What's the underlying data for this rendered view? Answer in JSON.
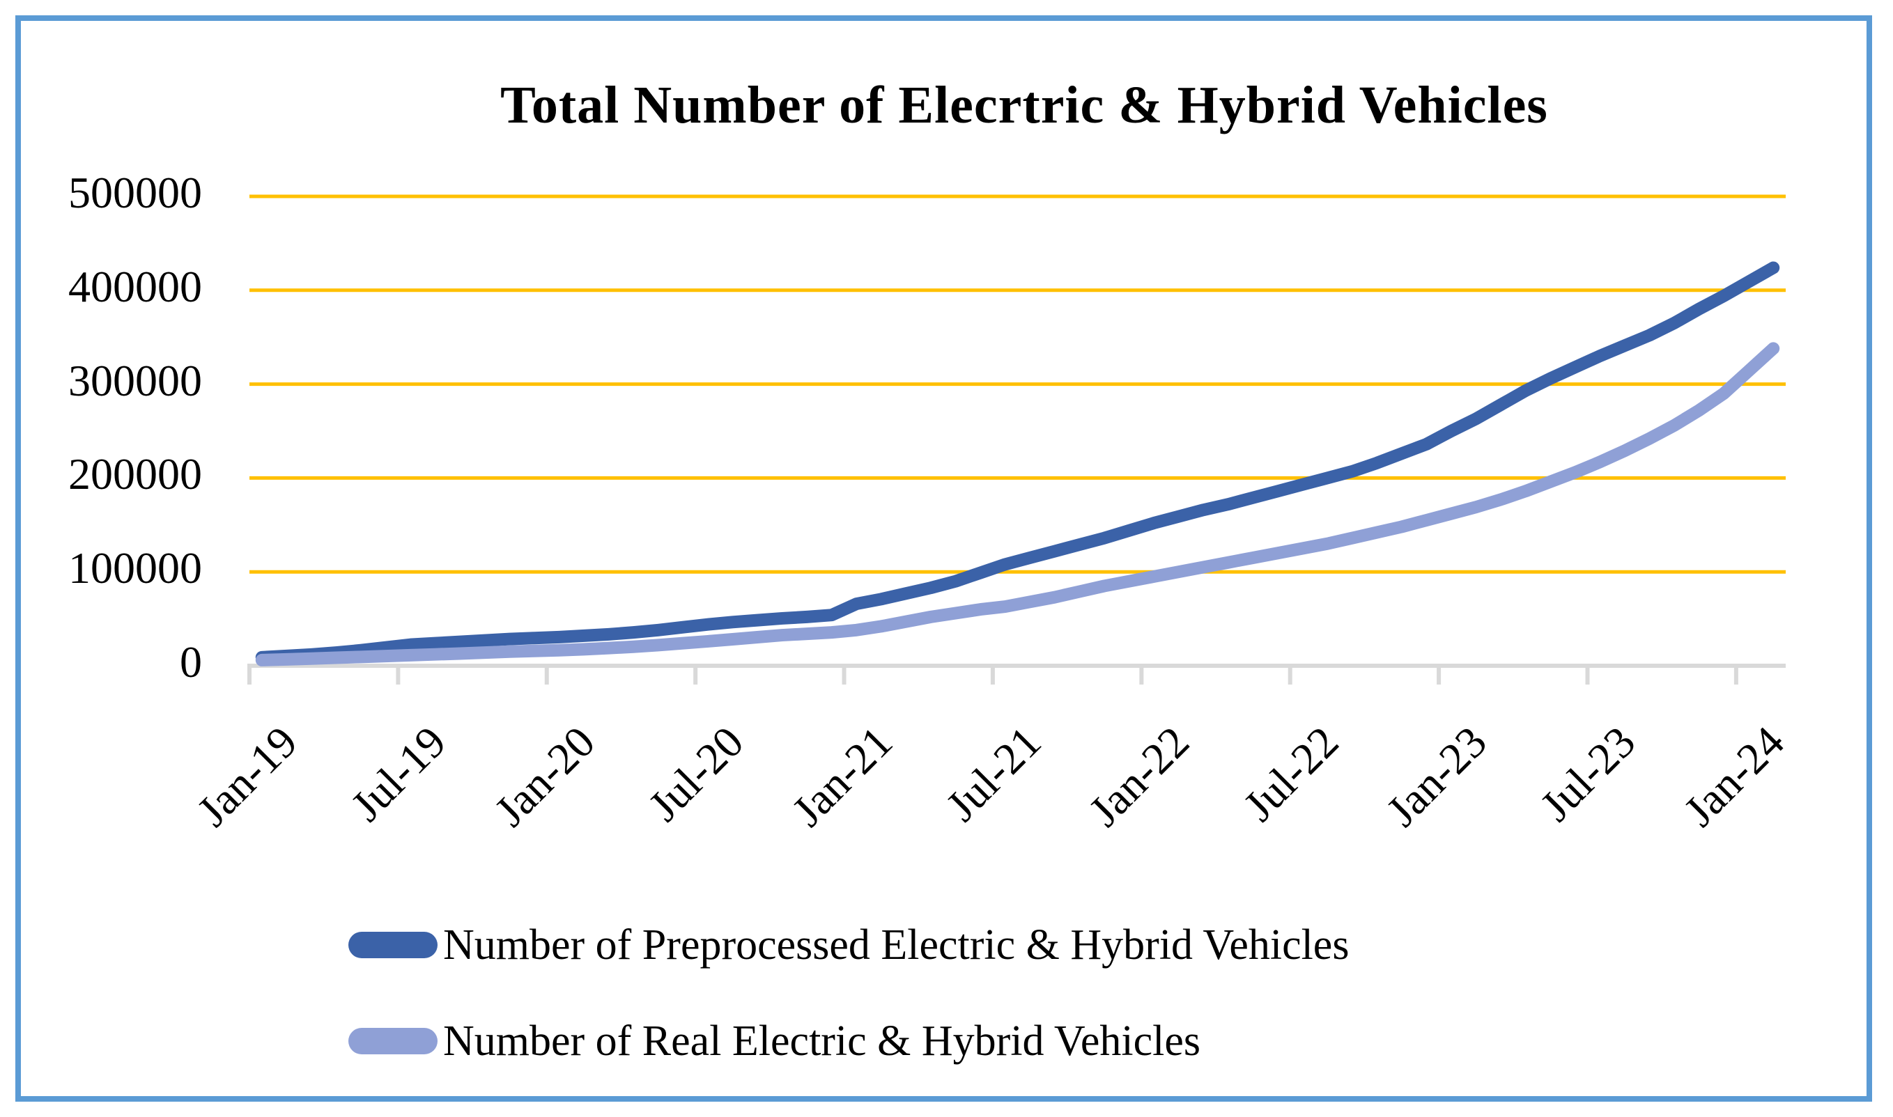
{
  "title": "Total Number of Elecrtric & Hybrid Vehicles",
  "colors": {
    "preprocessed": "#3B62A8",
    "real": "#8FA0D6",
    "gridline": "#FFC000",
    "axis_line": "#D9D9D9",
    "frame_border": "#5B9BD5"
  },
  "y_axis": {
    "labels": [
      {
        "text": "0",
        "value": 0
      },
      {
        "text": "100000",
        "value": 100000
      },
      {
        "text": "200000",
        "value": 200000
      },
      {
        "text": "300000",
        "value": 300000
      },
      {
        "text": "400000",
        "value": 400000
      },
      {
        "text": "500000",
        "value": 500000
      }
    ]
  },
  "x_axis": {
    "labels": [
      {
        "text": "Jan-19",
        "month_index": 0
      },
      {
        "text": "Jul-19",
        "month_index": 6
      },
      {
        "text": "Jan-20",
        "month_index": 12
      },
      {
        "text": "Jul-20",
        "month_index": 18
      },
      {
        "text": "Jan-21",
        "month_index": 24
      },
      {
        "text": "Jul-21",
        "month_index": 30
      },
      {
        "text": "Jan-22",
        "month_index": 36
      },
      {
        "text": "Jul-22",
        "month_index": 42
      },
      {
        "text": "Jan-23",
        "month_index": 48
      },
      {
        "text": "Jul-23",
        "month_index": 54
      },
      {
        "text": "Jan-24",
        "month_index": 60
      }
    ]
  },
  "legend": [
    {
      "label": "Number of Preprocessed Electric & Hybrid Vehicles",
      "color_key": "preprocessed"
    },
    {
      "label": "Number of Real Electric & Hybrid Vehicles",
      "color_key": "real"
    }
  ],
  "chart_data": {
    "type": "line",
    "title": "Total Number of Elecrtric & Hybrid Vehicles",
    "xlabel": "",
    "ylabel": "",
    "ylim": [
      0,
      500000
    ],
    "y_gridline_step": 100000,
    "grid": "horizontal",
    "legend_position": "bottom",
    "x": [
      "Jan-19",
      "Feb-19",
      "Mar-19",
      "Apr-19",
      "May-19",
      "Jun-19",
      "Jul-19",
      "Aug-19",
      "Sep-19",
      "Oct-19",
      "Nov-19",
      "Dec-19",
      "Jan-20",
      "Feb-20",
      "Mar-20",
      "Apr-20",
      "May-20",
      "Jun-20",
      "Jul-20",
      "Aug-20",
      "Sep-20",
      "Oct-20",
      "Nov-20",
      "Dec-20",
      "Jan-21",
      "Feb-21",
      "Mar-21",
      "Apr-21",
      "May-21",
      "Jun-21",
      "Jul-21",
      "Aug-21",
      "Sep-21",
      "Oct-21",
      "Nov-21",
      "Dec-21",
      "Jan-22",
      "Feb-22",
      "Mar-22",
      "Apr-22",
      "May-22",
      "Jun-22",
      "Jul-22",
      "Aug-22",
      "Sep-22",
      "Oct-22",
      "Nov-22",
      "Dec-22",
      "Jan-23",
      "Feb-23",
      "Mar-23",
      "Apr-23",
      "May-23",
      "Jun-23",
      "Jul-23",
      "Aug-23",
      "Sep-23",
      "Oct-23",
      "Nov-23",
      "Dec-23",
      "Jan-24",
      "Feb-24"
    ],
    "series": [
      {
        "name": "Number of Preprocessed Electric & Hybrid Vehicles",
        "color_key": "preprocessed",
        "values": [
          9000,
          10500,
          12000,
          14000,
          16500,
          19500,
          22500,
          24000,
          25500,
          27000,
          28500,
          29500,
          30500,
          32000,
          33500,
          35500,
          38000,
          41000,
          44000,
          46500,
          48500,
          50500,
          52000,
          54000,
          66000,
          71000,
          77000,
          83000,
          90000,
          99000,
          108000,
          115000,
          122000,
          129000,
          136000,
          144000,
          152000,
          159000,
          166000,
          172000,
          179000,
          186000,
          193000,
          200000,
          207000,
          216000,
          226000,
          236000,
          250000,
          263000,
          278000,
          293000,
          306000,
          318000,
          330000,
          341000,
          352000,
          365000,
          380000,
          394000,
          409000,
          424000
        ]
      },
      {
        "name": "Number of Real Electric & Hybrid Vehicles",
        "color_key": "real",
        "values": [
          6000,
          6800,
          7600,
          8500,
          9400,
          10300,
          11200,
          12100,
          13000,
          14000,
          15000,
          15800,
          16500,
          17500,
          18800,
          20200,
          22000,
          24000,
          26000,
          28200,
          30400,
          32600,
          34000,
          35500,
          38000,
          42000,
          47000,
          52000,
          56000,
          60000,
          63000,
          68000,
          73000,
          79000,
          85000,
          90000,
          95000,
          100000,
          105000,
          110000,
          115000,
          120000,
          125000,
          130000,
          136000,
          142000,
          148000,
          155000,
          162000,
          169000,
          177000,
          186000,
          196000,
          206000,
          217000,
          229000,
          242000,
          256000,
          272000,
          290000,
          314000,
          338000
        ]
      }
    ]
  }
}
